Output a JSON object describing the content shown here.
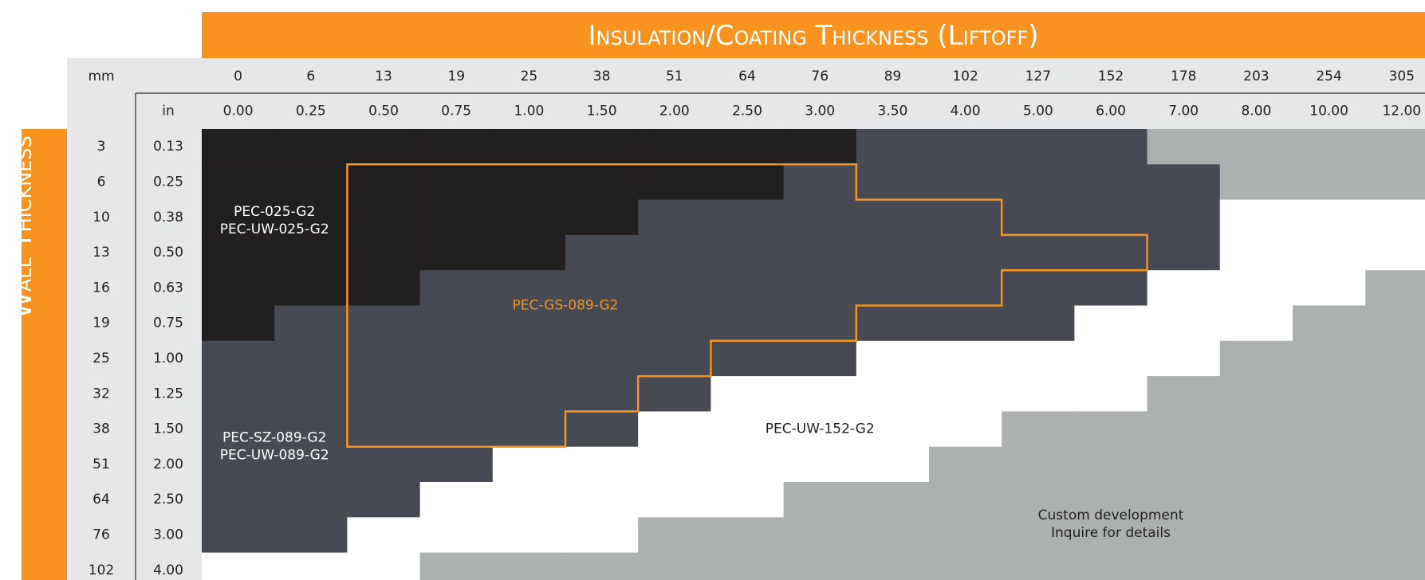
{
  "chart_data": {
    "type": "heatmap",
    "title": "Insulation/Coating Thickness (Liftoff)",
    "ylabel": "Wall Thickness",
    "x_unit_mm": "mm",
    "x_unit_in": "in",
    "x_mm": [
      "0",
      "6",
      "13",
      "19",
      "25",
      "38",
      "51",
      "64",
      "76",
      "89",
      "102",
      "127",
      "152",
      "178",
      "203",
      "254",
      "305"
    ],
    "x_in": [
      "0.00",
      "0.25",
      "0.50",
      "0.75",
      "1.00",
      "1.50",
      "2.00",
      "2.50",
      "3.00",
      "3.50",
      "4.00",
      "5.00",
      "6.00",
      "7.00",
      "8.00",
      "10.00",
      "12.00"
    ],
    "y_mm": [
      "3",
      "6",
      "10",
      "13",
      "16",
      "19",
      "25",
      "32",
      "38",
      "51",
      "64",
      "76",
      "102"
    ],
    "y_in": [
      "0.13",
      "0.25",
      "0.38",
      "0.50",
      "0.63",
      "0.75",
      "1.00",
      "1.25",
      "1.50",
      "2.00",
      "2.50",
      "3.00",
      "4.00"
    ],
    "legend": [],
    "colors": {
      "K": "#221f20",
      "D": "#474a52",
      "W": "#ffffff",
      "L": "#adb0b1",
      "accent": "#f7931e",
      "header": "#e6e7e8"
    },
    "grid_rows": [
      "KKKKKKKKKDDDDLLLL",
      "KKKKKKKKDDDDDDLLL",
      "KKKKKKDDDDDDDDWWW",
      "KKKKKDDDDDDDDDWWW",
      "KKKDDDDDDDDDDWWWL",
      "KDDDDDDDDDDDWWWLL",
      "DDDDDDDDDWWWWWLLL",
      "DDDDDDDWWWWWWLLLL",
      "DDDDDDWWWWWLLLLLL",
      "DDDDWWWWWWLLLLLLL",
      "DDDWWWWWLLLLLLLLL",
      "DDWWWWLLLLLLLLLLL",
      "WWWLLLLLLLLLLLLLL"
    ],
    "grid_legend": {
      "K": "PEC-025-G2 / PEC-UW-025-G2",
      "D": "PEC-SZ-089-G2 / PEC-UW-089-G2",
      "W": "PEC-UW-152-G2",
      "L": "Custom development / Inquire for details"
    },
    "region_labels": [
      {
        "key": "pec025",
        "lines": [
          "PEC-025-G2",
          "PEC-UW-025-G2"
        ],
        "color": "#ffffff",
        "col": 1,
        "row": 2.6
      },
      {
        "key": "pecgs",
        "lines": [
          "PEC-GS-089-G2"
        ],
        "color": "#f7931e",
        "col": 5.0,
        "row": 5.0
      },
      {
        "key": "pecsz",
        "lines": [
          "PEC-SZ-089-G2",
          "PEC-UW-089-G2"
        ],
        "color": "#ffffff",
        "col": 1,
        "row": 9.0
      },
      {
        "key": "pec152",
        "lines": [
          "PEC-UW-152-G2"
        ],
        "color": "#221f20",
        "col": 8.5,
        "row": 8.5
      },
      {
        "key": "custom",
        "lines": [
          "Custom development",
          "Inquire for details"
        ],
        "color": "#221f20",
        "col": 12.5,
        "row": 11.2
      }
    ],
    "outline_series": {
      "name": "PEC-GS-089-G2",
      "color": "#f7931e",
      "vertices": [
        [
          2,
          1
        ],
        [
          9,
          1
        ],
        [
          9,
          2
        ],
        [
          11,
          2
        ],
        [
          11,
          3
        ],
        [
          13,
          3
        ],
        [
          13,
          4
        ],
        [
          11,
          4
        ],
        [
          11,
          5
        ],
        [
          9,
          5
        ],
        [
          9,
          6
        ],
        [
          7,
          6
        ],
        [
          7,
          7
        ],
        [
          6,
          7
        ],
        [
          6,
          8
        ],
        [
          5,
          8
        ],
        [
          5,
          9
        ],
        [
          2,
          9
        ]
      ]
    }
  }
}
